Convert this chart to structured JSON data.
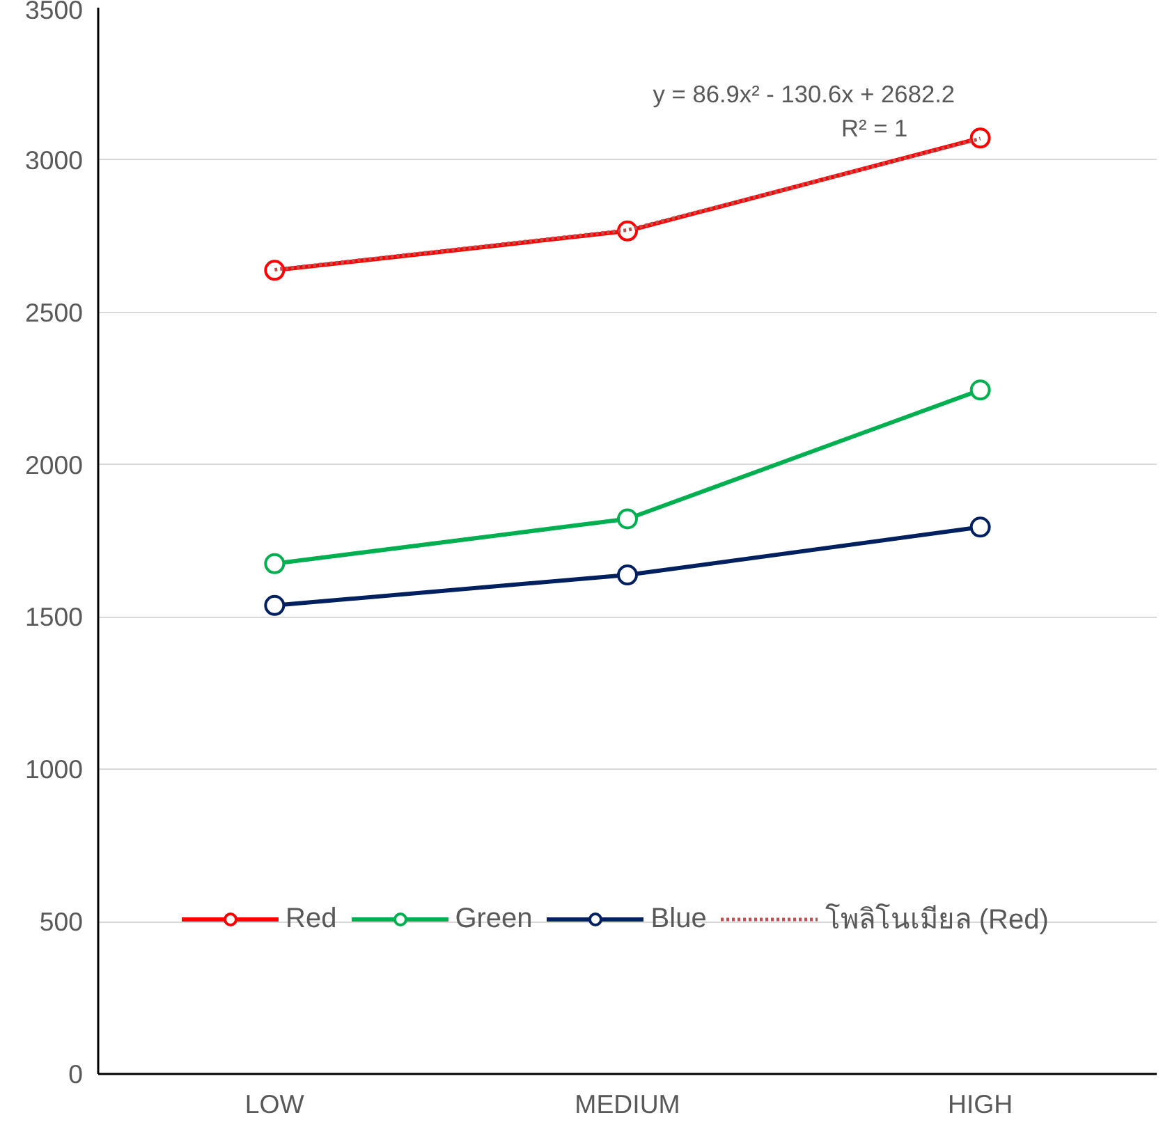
{
  "chart_data": {
    "type": "line",
    "categories": [
      "LOW",
      "MEDIUM",
      "HIGH"
    ],
    "series": [
      {
        "name": "Red",
        "color": "#ff0000",
        "values": [
          2638,
          2767,
          3072
        ]
      },
      {
        "name": "Green",
        "color": "#00b050",
        "values": [
          1675,
          1822,
          2245
        ]
      },
      {
        "name": "Blue",
        "color": "#002060",
        "values": [
          1538,
          1638,
          1795
        ]
      },
      {
        "name": "โพลิโนเมียล (Red)",
        "color": "#c0504d",
        "type": "line",
        "marker": "none",
        "line_style": "dotted",
        "values": [
          2640,
          2770,
          3070
        ]
      }
    ],
    "annotations": [
      "y = 86.9x² - 130.6x + 2682.2",
      "R² = 1"
    ],
    "ylim": [
      0,
      3500
    ],
    "yticks": [
      0,
      500,
      1000,
      1500,
      2000,
      2500,
      3000,
      3500
    ],
    "grid": "y",
    "legend": "bottom",
    "marker": "circle",
    "line_style": "solid"
  }
}
